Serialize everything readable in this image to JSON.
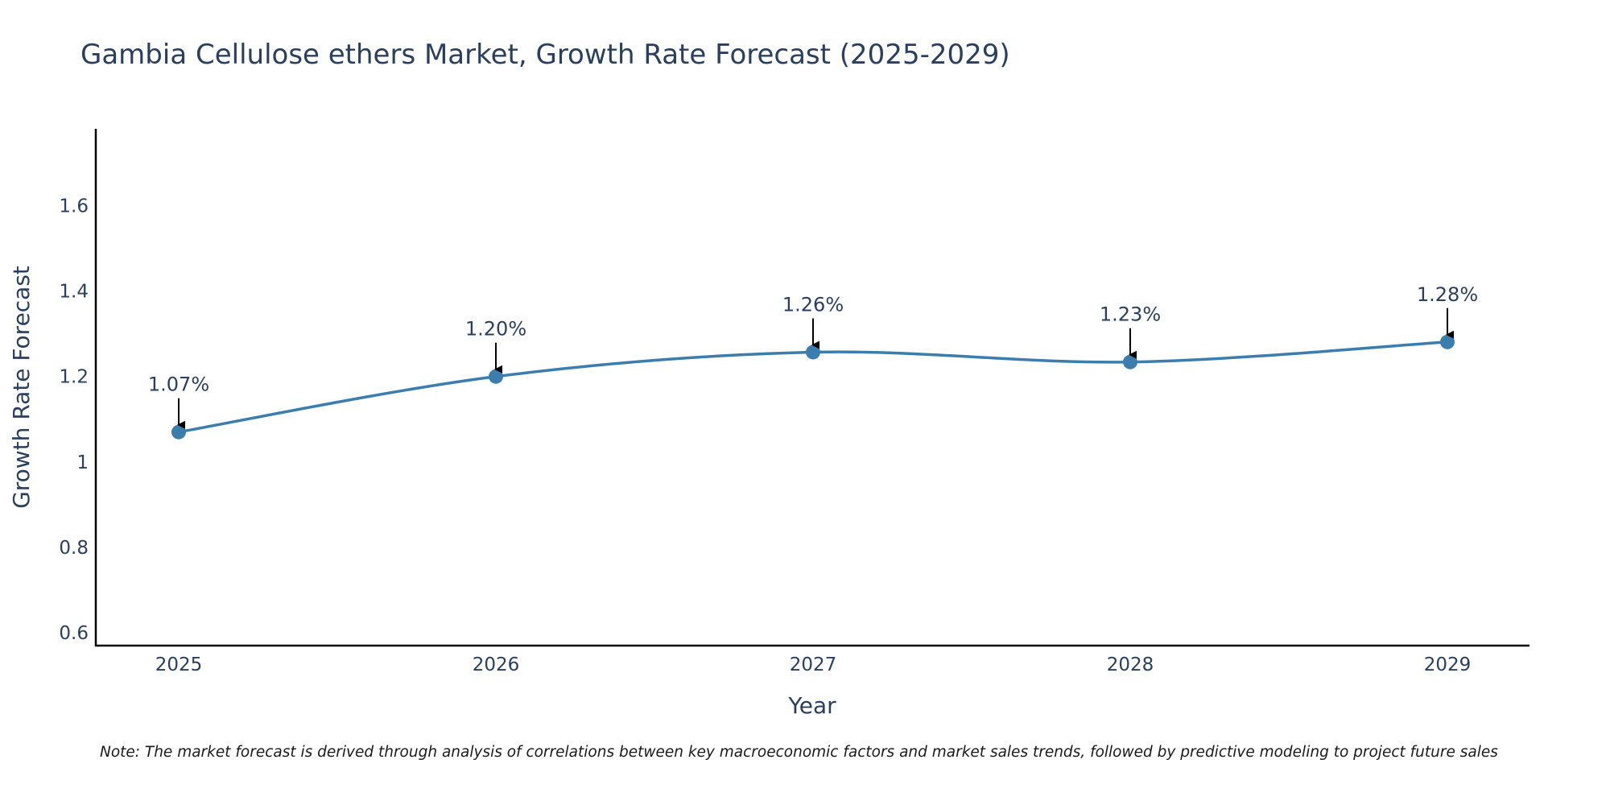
{
  "chart_data": {
    "type": "line",
    "title": "Gambia Cellulose ethers Market, Growth Rate Forecast (2025-2029)",
    "xlabel": "Year",
    "ylabel": "Growth Rate Forecast",
    "categories": [
      "2025",
      "2026",
      "2027",
      "2028",
      "2029"
    ],
    "series": [
      {
        "name": "Growth Rate Forecast",
        "values": [
          1.07,
          1.2,
          1.257,
          1.234,
          1.281
        ],
        "labels": [
          "1.07%",
          "1.20%",
          "1.26%",
          "1.23%",
          "1.28%"
        ]
      }
    ],
    "ylim": [
      0.57,
      1.78
    ],
    "yticks": [
      0.6,
      0.8,
      1,
      1.2,
      1.4,
      1.6
    ],
    "ytick_labels": [
      "0.6",
      "0.8",
      "1",
      "1.2",
      "1.4",
      "1.6"
    ],
    "grid": false,
    "line_color": "#3b7dad",
    "note": "Note: The market forecast is derived through analysis of correlations between key macroeconomic factors and market sales trends, followed by predictive modeling to project future sales"
  }
}
